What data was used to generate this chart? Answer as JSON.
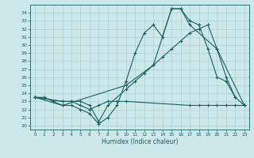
{
  "xlabel": "Humidex (Indice chaleur)",
  "xlim": [
    -0.5,
    23.5
  ],
  "ylim": [
    19.5,
    35
  ],
  "yticks": [
    20,
    21,
    22,
    23,
    24,
    25,
    26,
    27,
    28,
    29,
    30,
    31,
    32,
    33,
    34
  ],
  "xticks": [
    0,
    1,
    2,
    3,
    4,
    5,
    6,
    7,
    8,
    9,
    10,
    11,
    12,
    13,
    14,
    15,
    16,
    17,
    18,
    19,
    20,
    21,
    22,
    23
  ],
  "bg_color": "#cce8e8",
  "grid_color": "#aad0d0",
  "line_color": "#1a6060",
  "marker": "+",
  "markersize": 3,
  "linewidth": 0.8,
  "line1_x": [
    0,
    1,
    2,
    3,
    4,
    5,
    6,
    7,
    8,
    9,
    10,
    11,
    12,
    13,
    14,
    15,
    16,
    17,
    18,
    19,
    20,
    21,
    22
  ],
  "line1_y": [
    23.5,
    23.5,
    23.0,
    22.5,
    22.5,
    22.0,
    21.5,
    20.2,
    21.0,
    22.5,
    25.5,
    29.0,
    31.5,
    32.5,
    31.0,
    34.5,
    34.5,
    33.0,
    32.5,
    29.5,
    26.0,
    25.5,
    23.5
  ],
  "line2_x": [
    0,
    3,
    4,
    5,
    6,
    7,
    8,
    10,
    11,
    12,
    13,
    14,
    15,
    16,
    17,
    18,
    19,
    20,
    21,
    22,
    23
  ],
  "line2_y": [
    23.5,
    23.0,
    23.0,
    23.0,
    22.5,
    20.5,
    22.5,
    24.5,
    25.5,
    26.5,
    27.5,
    28.5,
    29.5,
    30.5,
    31.5,
    32.0,
    32.5,
    29.5,
    26.0,
    23.5,
    22.5
  ],
  "line3_x": [
    0,
    3,
    10,
    13,
    15,
    16,
    17,
    20,
    23
  ],
  "line3_y": [
    23.5,
    22.5,
    25.0,
    27.5,
    34.5,
    34.5,
    32.5,
    29.5,
    22.5
  ],
  "line4_x": [
    0,
    3,
    4,
    5,
    6,
    7,
    8,
    9,
    10,
    17,
    18,
    19,
    20,
    21,
    22,
    23
  ],
  "line4_y": [
    23.5,
    23.0,
    23.0,
    22.5,
    22.0,
    22.5,
    23.0,
    23.0,
    23.0,
    22.5,
    22.5,
    22.5,
    22.5,
    22.5,
    22.5,
    22.5
  ]
}
